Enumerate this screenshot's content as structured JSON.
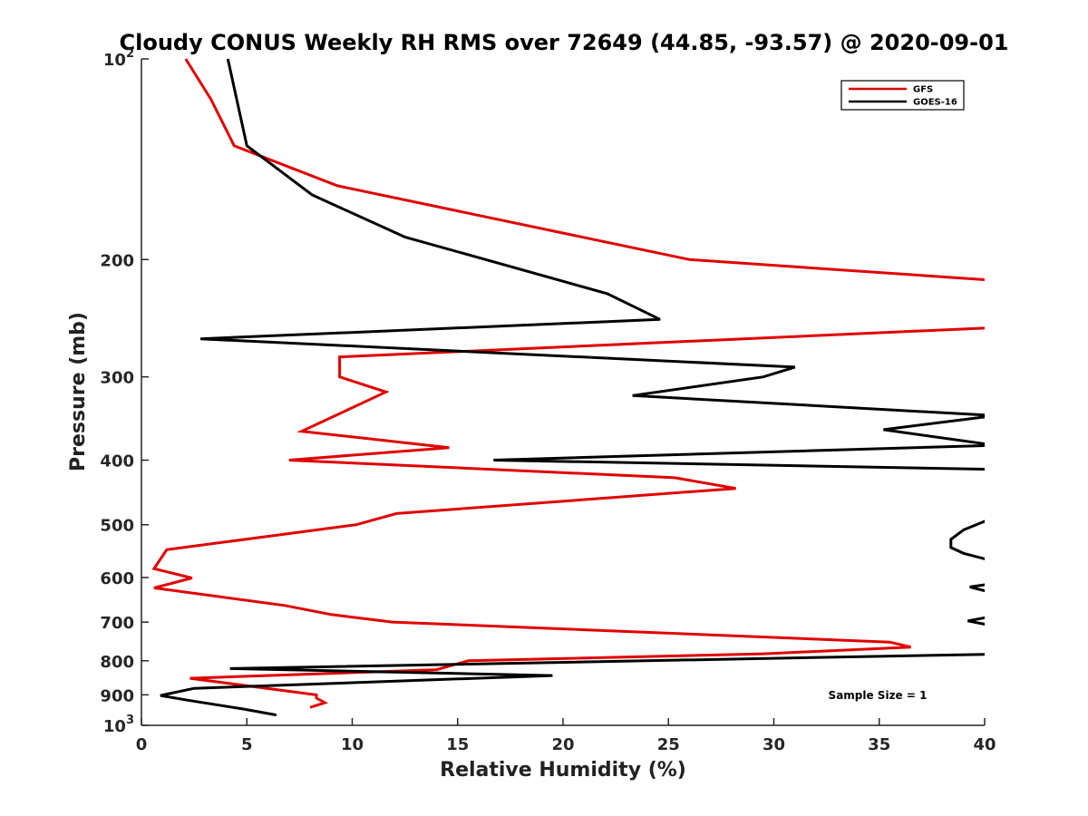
{
  "chart_data": {
    "type": "line",
    "title": "Cloudy CONUS Weekly RH RMS over 72649 (44.85, -93.57) @ 2020-09-01",
    "xlabel": "Relative Humidity (%)",
    "ylabel": "Pressure (mb)",
    "xlim": [
      0,
      40
    ],
    "ylim": [
      100,
      1000
    ],
    "y_scale": "log",
    "y_reversed": true,
    "grid": false,
    "legend_position": "top-right",
    "x_ticks": [
      "0",
      "5",
      "10",
      "15",
      "20",
      "25",
      "30",
      "35",
      "40"
    ],
    "y_ticks": [
      {
        "value": 100,
        "base": "10",
        "exp": "2"
      },
      {
        "value": 200,
        "label": "200"
      },
      {
        "value": 300,
        "label": "300"
      },
      {
        "value": 400,
        "label": "400"
      },
      {
        "value": 500,
        "label": "500"
      },
      {
        "value": 600,
        "label": "600"
      },
      {
        "value": 700,
        "label": "700"
      },
      {
        "value": 800,
        "label": "800"
      },
      {
        "value": 900,
        "label": "900"
      },
      {
        "value": 1000,
        "base": "10",
        "exp": "3"
      }
    ],
    "annotation": "Sample Size = 1",
    "series": [
      {
        "name": "GFS",
        "color": "#e00000",
        "segments": [
          [
            [
              2.1,
              100
            ],
            [
              3.3,
              115
            ],
            [
              4.4,
              135
            ],
            [
              9.3,
              155
            ],
            [
              26,
              200
            ],
            [
              40.5,
              215
            ]
          ],
          [
            [
              40.5,
              253
            ],
            [
              9.4,
              280
            ],
            [
              9.4,
              300
            ],
            [
              11.6,
              316
            ],
            [
              9.2,
              343
            ],
            [
              7.6,
              362
            ],
            [
              14.6,
              383
            ],
            [
              7.0,
              400
            ],
            [
              25.3,
              425
            ],
            [
              28.2,
              441
            ],
            [
              12.1,
              481
            ],
            [
              10.2,
              500
            ],
            [
              1.2,
              545
            ],
            [
              0.6,
              582
            ],
            [
              2.4,
              601
            ],
            [
              0.6,
              622
            ],
            [
              6.8,
              661
            ],
            [
              9.0,
              682
            ],
            [
              11.9,
              700
            ],
            [
              35.5,
              750
            ],
            [
              36.5,
              763
            ],
            [
              29.5,
              781
            ],
            [
              15.5,
              800
            ],
            [
              14.0,
              825
            ],
            [
              2.3,
              850
            ],
            [
              8.3,
              900
            ],
            [
              8.3,
              910
            ],
            [
              8.7,
              925
            ],
            [
              8.0,
              940
            ]
          ]
        ]
      },
      {
        "name": "GOES-16",
        "color": "#000000",
        "segments": [
          [
            [
              4.1,
              100
            ],
            [
              5.0,
              135
            ],
            [
              8.1,
              160
            ],
            [
              12.5,
              185
            ],
            [
              22.1,
              225
            ],
            [
              24.6,
              246
            ],
            [
              2.8,
              263
            ],
            [
              31.0,
              290
            ],
            [
              29.5,
              300
            ],
            [
              23.3,
              320
            ],
            [
              40.5,
              343
            ],
            [
              35.2,
              360
            ],
            [
              40.5,
              380
            ],
            [
              16.7,
              400
            ],
            [
              40.5,
              413
            ]
          ],
          [
            [
              40.5,
              487
            ],
            [
              39.0,
              509
            ],
            [
              38.4,
              526
            ],
            [
              38.4,
              541
            ],
            [
              39.0,
              552
            ],
            [
              40.5,
              568
            ]
          ],
          [
            [
              40.5,
              612
            ],
            [
              39.3,
              620
            ],
            [
              40.5,
              634
            ]
          ],
          [
            [
              40.5,
              685
            ],
            [
              39.2,
              697
            ],
            [
              40.5,
              710
            ]
          ],
          [
            [
              40.5,
              782
            ],
            [
              4.2,
              822
            ],
            [
              19.5,
              842
            ],
            [
              2.5,
              880
            ],
            [
              0.9,
              902
            ],
            [
              2.3,
              918
            ],
            [
              4.8,
              945
            ],
            [
              6.4,
              965
            ]
          ]
        ]
      }
    ]
  }
}
